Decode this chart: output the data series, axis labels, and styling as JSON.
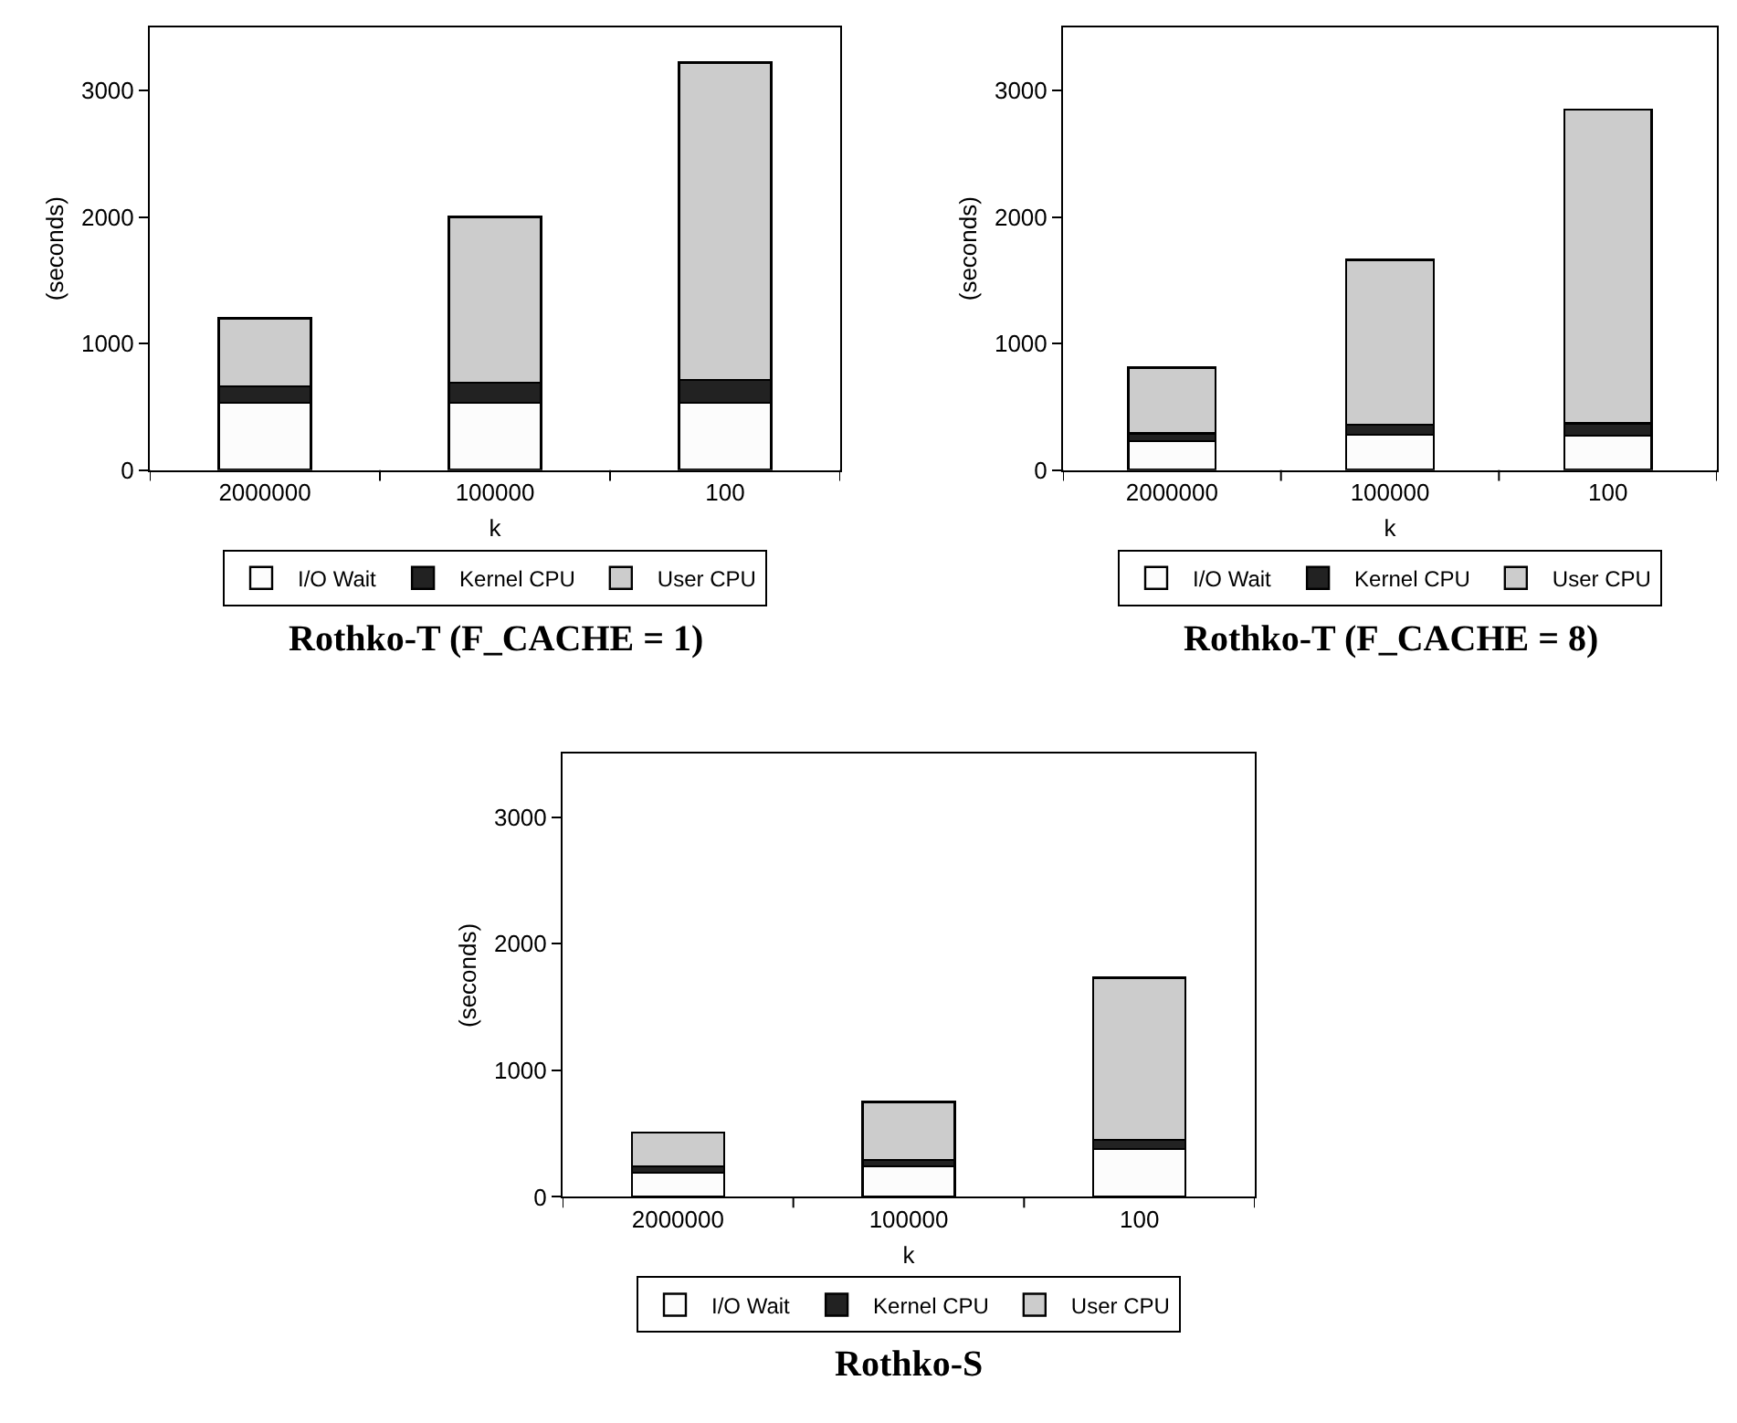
{
  "chart_data": [
    {
      "type": "bar",
      "stacked": true,
      "title": "Rothko-T (F_CACHE = 1)",
      "xlabel": "k",
      "ylabel": "(seconds)",
      "categories": [
        "2000000",
        "100000",
        "100"
      ],
      "ylim": [
        0,
        3500
      ],
      "yticks": [
        0,
        1000,
        2000,
        3000
      ],
      "grid": false,
      "legend": "bottom",
      "series": [
        {
          "name": "I/O Wait",
          "color": "#fcfcfc",
          "values": [
            530,
            530,
            530
          ]
        },
        {
          "name": "Kernel CPU",
          "color": "#222222",
          "values": [
            130,
            160,
            180
          ]
        },
        {
          "name": "User CPU",
          "color": "#cccccc",
          "values": [
            540,
            1310,
            2510
          ]
        }
      ]
    },
    {
      "type": "bar",
      "stacked": true,
      "title": "Rothko-T (F_CACHE = 8)",
      "xlabel": "k",
      "ylabel": "(seconds)",
      "categories": [
        "2000000",
        "100000",
        "100"
      ],
      "ylim": [
        0,
        3500
      ],
      "yticks": [
        0,
        1000,
        2000,
        3000
      ],
      "grid": false,
      "legend": "bottom",
      "series": [
        {
          "name": "I/O Wait",
          "color": "#fcfcfc",
          "values": [
            230,
            280,
            270
          ]
        },
        {
          "name": "Kernel CPU",
          "color": "#222222",
          "values": [
            60,
            80,
            100
          ]
        },
        {
          "name": "User CPU",
          "color": "#cccccc",
          "values": [
            520,
            1300,
            2480
          ]
        }
      ]
    },
    {
      "type": "bar",
      "stacked": true,
      "title": "Rothko-S",
      "xlabel": "k",
      "ylabel": "(seconds)",
      "categories": [
        "2000000",
        "100000",
        "100"
      ],
      "ylim": [
        0,
        3500
      ],
      "yticks": [
        0,
        1000,
        2000,
        3000
      ],
      "grid": false,
      "legend": "bottom",
      "series": [
        {
          "name": "I/O Wait",
          "color": "#fcfcfc",
          "values": [
            190,
            240,
            380
          ]
        },
        {
          "name": "Kernel CPU",
          "color": "#222222",
          "values": [
            50,
            50,
            70
          ]
        },
        {
          "name": "User CPU",
          "color": "#cccccc",
          "values": [
            270,
            460,
            1280
          ]
        }
      ]
    }
  ]
}
